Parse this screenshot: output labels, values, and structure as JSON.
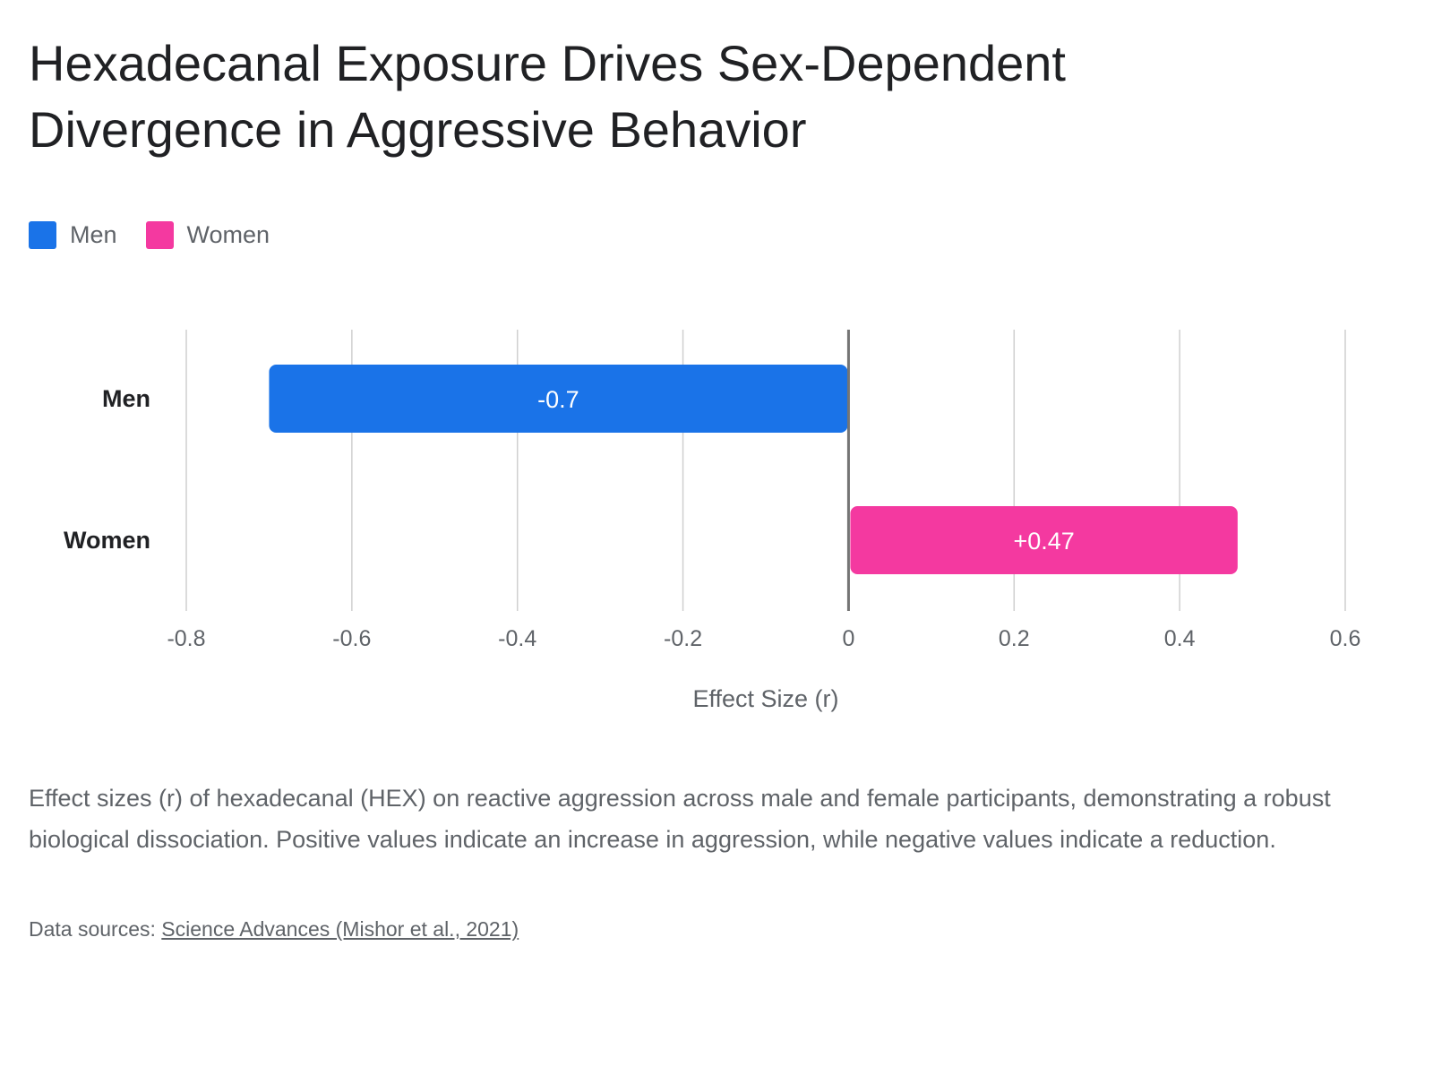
{
  "title": "Hexadecanal Exposure Drives Sex-Dependent Divergence in Aggressive Behavior",
  "legend": {
    "items": [
      {
        "label": "Men",
        "color": "#1a73e8"
      },
      {
        "label": "Women",
        "color": "#f439a0"
      }
    ]
  },
  "chart_data": {
    "type": "bar",
    "orientation": "horizontal",
    "categories": [
      "Men",
      "Women"
    ],
    "series": [
      {
        "name": "Men",
        "values": [
          -0.7,
          null
        ],
        "color": "#1a73e8"
      },
      {
        "name": "Women",
        "values": [
          null,
          0.47
        ],
        "color": "#f439a0"
      }
    ],
    "data_labels": [
      "-0.7",
      "+0.47"
    ],
    "title": "Hexadecanal Exposure Drives Sex-Dependent Divergence in Aggressive Behavior",
    "xlabel": "Effect Size (r)",
    "ylabel": "",
    "xlim": [
      -0.8,
      0.6
    ],
    "xticks": [
      -0.8,
      -0.6,
      -0.4,
      -0.2,
      0,
      0.2,
      0.4,
      0.6
    ],
    "xtick_labels": [
      "-0.8",
      "-0.6",
      "-0.4",
      "-0.2",
      "0",
      "0.2",
      "0.4",
      "0.6"
    ],
    "grid": true,
    "legend_position": "top-left"
  },
  "caption": "Effect sizes (r) of hexadecanal (HEX) on reactive aggression across male and female participants, demonstrating a robust biological dissociation. Positive values indicate an increase in aggression, while negative values indicate a reduction.",
  "sources": {
    "prefix": "Data sources: ",
    "link_text": "Science Advances (Mishor et al., 2021)"
  }
}
